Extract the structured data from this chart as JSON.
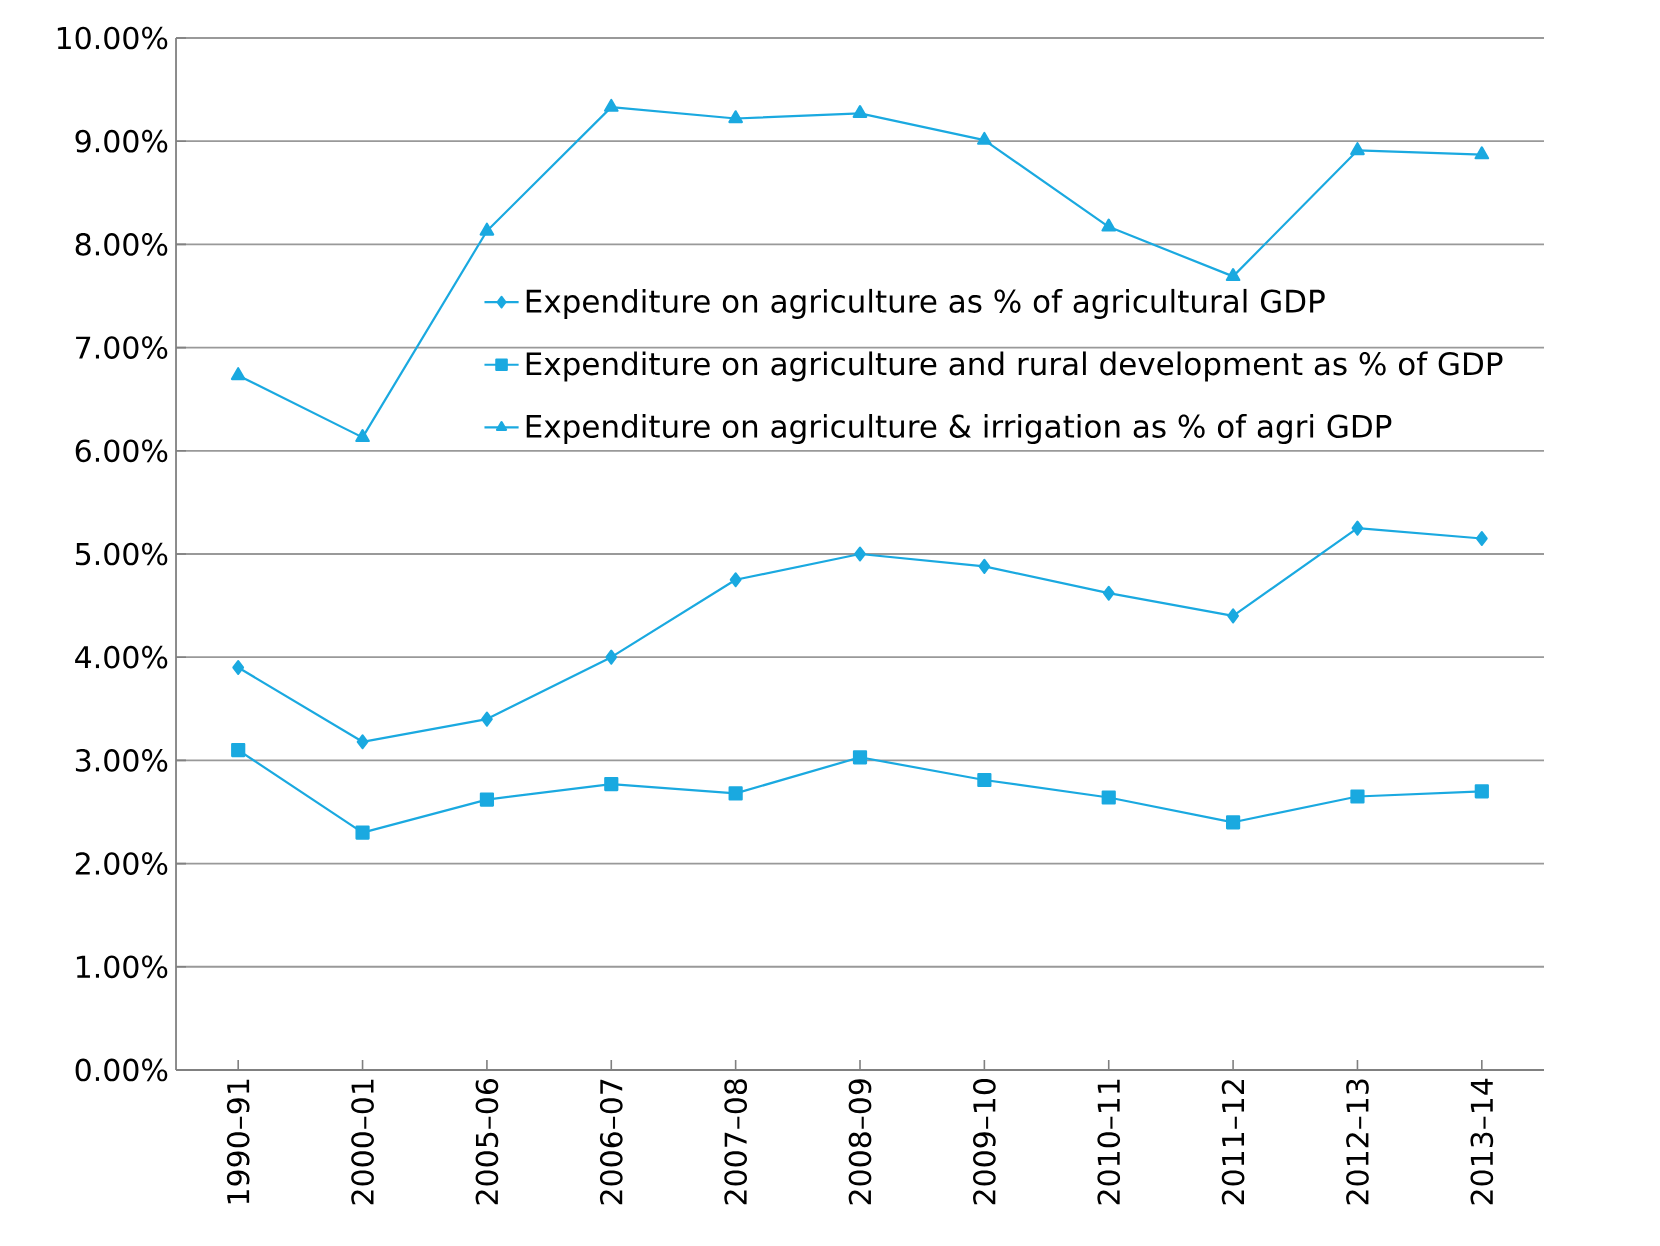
{
  "chart_data": {
    "type": "line",
    "categories": [
      "1990–91",
      "2000–01",
      "2005–06",
      "2006–07",
      "2007–08",
      "2008–09",
      "2009–10",
      "2010–11",
      "2011–12",
      "2012–13",
      "2013–14"
    ],
    "series": [
      {
        "name": "Expenditure on agriculture as % of agricultural GDP",
        "color": "#1aa9e0",
        "marker": "diamond",
        "values": [
          3.9,
          3.18,
          3.4,
          4.0,
          4.75,
          5.0,
          4.88,
          4.62,
          4.4,
          5.25,
          5.15
        ]
      },
      {
        "name": "Expenditure on agriculture and rural development as % of GDP",
        "color": "#1aa9e0",
        "marker": "square",
        "values": [
          3.1,
          2.3,
          2.62,
          2.77,
          2.68,
          3.03,
          2.81,
          2.64,
          2.4,
          2.65,
          2.7
        ]
      },
      {
        "name": "Expenditure on agriculture & irrigation as % of agri GDP",
        "color": "#1aa9e0",
        "marker": "triangle",
        "values": [
          6.73,
          6.13,
          8.13,
          9.33,
          9.22,
          9.27,
          9.01,
          8.17,
          7.69,
          8.91,
          8.87
        ]
      }
    ],
    "ylim": [
      0,
      10
    ],
    "yticks": [
      {
        "value": 0,
        "label": "0.00%"
      },
      {
        "value": 1,
        "label": "1.00%"
      },
      {
        "value": 2,
        "label": "2.00%"
      },
      {
        "value": 3,
        "label": "3.00%"
      },
      {
        "value": 4,
        "label": "4.00%"
      },
      {
        "value": 5,
        "label": "5.00%"
      },
      {
        "value": 6,
        "label": "6.00%"
      },
      {
        "value": 7,
        "label": "7.00%"
      },
      {
        "value": 8,
        "label": "8.00%"
      },
      {
        "value": 9,
        "label": "9.00%"
      },
      {
        "value": 10,
        "label": "10.00%"
      }
    ],
    "grid": "y",
    "legend": "right",
    "line_style": "solid"
  }
}
